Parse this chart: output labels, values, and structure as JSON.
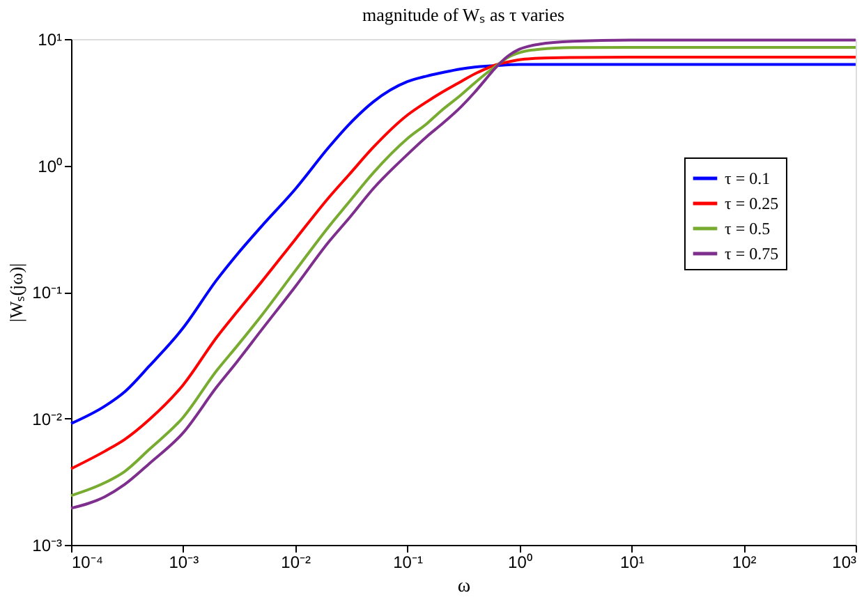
{
  "chart_data": {
    "type": "line",
    "title": "magnitude of Wₛ as τ varies",
    "xlabel": "ω",
    "ylabel": "|Wₛ(jω)|",
    "log": "xy",
    "grid": false,
    "legend": "right",
    "line_style": "solid",
    "marker": "none",
    "xlim": [
      0.0001,
      1000
    ],
    "ylim": [
      0.001,
      10
    ],
    "xticks": [
      {
        "value": 0.0001,
        "label": "10⁻⁴"
      },
      {
        "value": 0.001,
        "label": "10⁻³"
      },
      {
        "value": 0.01,
        "label": "10⁻²"
      },
      {
        "value": 0.1,
        "label": "10⁻¹"
      },
      {
        "value": 1,
        "label": "10⁰"
      },
      {
        "value": 10,
        "label": "10¹"
      },
      {
        "value": 100,
        "label": "10²"
      },
      {
        "value": 1000,
        "label": "10³"
      }
    ],
    "yticks": [
      {
        "value": 0.001,
        "label": "10⁻³"
      },
      {
        "value": 0.01,
        "label": "10⁻²"
      },
      {
        "value": 0.1,
        "label": "10⁻¹"
      },
      {
        "value": 1,
        "label": "10⁰"
      },
      {
        "value": 10,
        "label": "10¹"
      }
    ],
    "x": [
      0.0001,
      0.0002,
      0.0003,
      0.0005,
      0.001,
      0.002,
      0.003,
      0.005,
      0.01,
      0.02,
      0.03,
      0.05,
      0.1,
      0.15,
      0.2,
      0.3,
      0.4,
      0.5,
      0.6,
      0.8,
      1,
      1.5,
      3,
      10,
      100,
      1000
    ],
    "series": [
      {
        "name": "τ = 0.1",
        "color": "#0000ff",
        "values": [
          0.0091,
          0.0125,
          0.0162,
          0.026,
          0.052,
          0.125,
          0.196,
          0.33,
          0.65,
          1.4,
          2.1,
          3.2,
          4.6,
          5.1,
          5.4,
          5.8,
          6.0,
          6.1,
          6.15,
          6.25,
          6.3,
          6.3,
          6.3,
          6.3,
          6.3,
          6.3
        ]
      },
      {
        "name": "τ = 0.25",
        "color": "#ff0000",
        "values": [
          0.004,
          0.0055,
          0.0068,
          0.0098,
          0.0184,
          0.044,
          0.069,
          0.12,
          0.26,
          0.56,
          0.84,
          1.4,
          2.5,
          3.2,
          3.75,
          4.6,
          5.3,
          5.8,
          6.2,
          6.6,
          6.85,
          7.05,
          7.15,
          7.2,
          7.2,
          7.2
        ]
      },
      {
        "name": "τ = 0.5",
        "color": "#77ac30",
        "values": [
          0.00245,
          0.0031,
          0.0038,
          0.0057,
          0.0102,
          0.024,
          0.037,
          0.065,
          0.147,
          0.33,
          0.51,
          0.88,
          1.63,
          2.15,
          2.7,
          3.6,
          4.5,
          5.3,
          6.0,
          7.2,
          7.8,
          8.3,
          8.55,
          8.6,
          8.6,
          8.6
        ]
      },
      {
        "name": "τ = 0.75",
        "color": "#7e2f8e",
        "values": [
          0.00195,
          0.0024,
          0.003,
          0.0044,
          0.0077,
          0.0178,
          0.0278,
          0.05,
          0.11,
          0.25,
          0.38,
          0.66,
          1.22,
          1.7,
          2.1,
          2.9,
          3.8,
          4.8,
          5.8,
          7.4,
          8.3,
          9.1,
          9.6,
          9.8,
          9.8,
          9.8
        ]
      }
    ]
  }
}
